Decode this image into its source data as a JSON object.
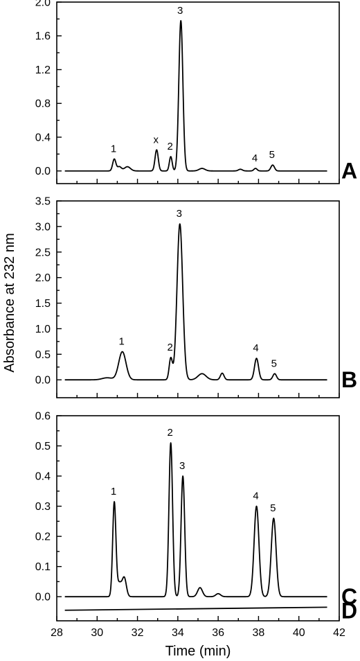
{
  "chart_data": {
    "type": "line",
    "xlabel": "Time (min)",
    "ylabel": "Absorbance at 232 nm",
    "xlim": [
      28,
      42
    ],
    "x_ticks": [
      "28",
      "30",
      "32",
      "34",
      "36",
      "38",
      "40",
      "42"
    ],
    "panels": [
      {
        "letter": "A",
        "ylim": [
          -0.15,
          2.0
        ],
        "y_ticks": [
          "0.0",
          "0.4",
          "0.8",
          "1.2",
          "1.6",
          "2.0"
        ],
        "baseline": 0.0,
        "peaks": [
          {
            "label": "1",
            "x": 30.85,
            "y": 0.14,
            "w": 0.08
          },
          {
            "label": "",
            "x": 31.1,
            "y": 0.05,
            "w": 0.1
          },
          {
            "label": "",
            "x": 31.5,
            "y": 0.05,
            "w": 0.15
          },
          {
            "label": "x",
            "x": 32.95,
            "y": 0.25,
            "w": 0.08
          },
          {
            "label": "2",
            "x": 33.65,
            "y": 0.17,
            "w": 0.07
          },
          {
            "label": "3",
            "x": 34.15,
            "y": 1.78,
            "w": 0.1
          },
          {
            "label": "",
            "x": 35.2,
            "y": 0.03,
            "w": 0.15
          },
          {
            "label": "",
            "x": 37.1,
            "y": 0.02,
            "w": 0.1
          },
          {
            "label": "4",
            "x": 37.85,
            "y": 0.03,
            "w": 0.08
          },
          {
            "label": "5",
            "x": 38.7,
            "y": 0.07,
            "w": 0.09
          }
        ]
      },
      {
        "letter": "B",
        "ylim": [
          -0.35,
          3.5
        ],
        "y_ticks": [
          "0.0",
          "0.5",
          "1.0",
          "1.5",
          "2.0",
          "2.5",
          "3.0",
          "3.5"
        ],
        "baseline": 0.0,
        "peaks": [
          {
            "label": "",
            "x": 30.5,
            "y": 0.04,
            "w": 0.25
          },
          {
            "label": "1",
            "x": 31.25,
            "y": 0.55,
            "w": 0.18
          },
          {
            "label": "2",
            "x": 33.65,
            "y": 0.42,
            "w": 0.08
          },
          {
            "label": "3",
            "x": 34.1,
            "y": 3.05,
            "w": 0.14
          },
          {
            "label": "",
            "x": 35.2,
            "y": 0.12,
            "w": 0.2
          },
          {
            "label": "",
            "x": 36.2,
            "y": 0.13,
            "w": 0.09
          },
          {
            "label": "4",
            "x": 37.9,
            "y": 0.42,
            "w": 0.1
          },
          {
            "label": "5",
            "x": 38.8,
            "y": 0.12,
            "w": 0.09
          }
        ]
      },
      {
        "letter": "C",
        "ylim": [
          -0.08,
          0.6
        ],
        "y_ticks": [
          "0.0",
          "0.1",
          "0.2",
          "0.3",
          "0.4",
          "0.5",
          "0.6"
        ],
        "baseline": 0.0,
        "peaks": [
          {
            "label": "1",
            "x": 30.85,
            "y": 0.31,
            "w": 0.08
          },
          {
            "label": "",
            "x": 31.1,
            "y": 0.045,
            "w": 0.12
          },
          {
            "label": "",
            "x": 31.35,
            "y": 0.06,
            "w": 0.1
          },
          {
            "label": "2",
            "x": 33.65,
            "y": 0.51,
            "w": 0.09
          },
          {
            "label": "3",
            "x": 34.25,
            "y": 0.4,
            "w": 0.09
          },
          {
            "label": "",
            "x": 35.1,
            "y": 0.03,
            "w": 0.12
          },
          {
            "label": "",
            "x": 36.0,
            "y": 0.01,
            "w": 0.12
          },
          {
            "label": "4",
            "x": 37.9,
            "y": 0.3,
            "w": 0.12
          },
          {
            "label": "5",
            "x": 38.75,
            "y": 0.26,
            "w": 0.12
          }
        ],
        "extra_trace": {
          "letter": "D",
          "y_start": -0.045,
          "y_end": -0.035
        }
      }
    ]
  }
}
